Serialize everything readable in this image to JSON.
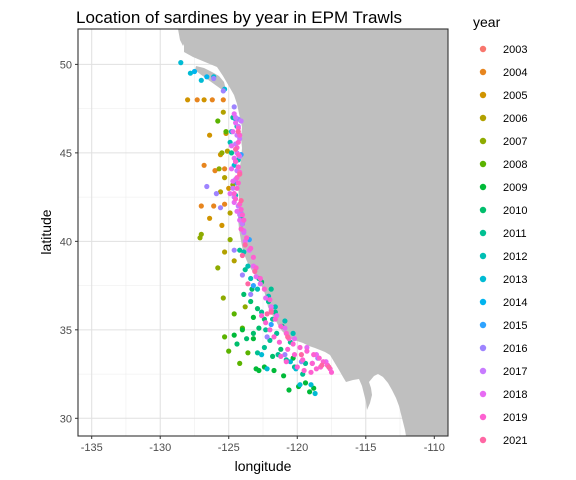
{
  "chart_data": {
    "type": "scatter",
    "title": "Location of sardines by year in EPM Trawls",
    "xlabel": "longitude",
    "ylabel": "latitude",
    "xlim": [
      -136,
      -109
    ],
    "ylim": [
      29,
      52
    ],
    "x_ticks": [
      -135,
      -130,
      -125,
      -120,
      -115,
      -110
    ],
    "y_ticks": [
      30,
      35,
      40,
      45,
      50
    ],
    "x_tick_labels": [
      "-135",
      "-130",
      "-125",
      "-120",
      "-115",
      "-110"
    ],
    "y_tick_labels": [
      "30",
      "35",
      "40",
      "45",
      "50"
    ],
    "grid": true,
    "legend": {
      "title": "year",
      "position": "right",
      "entries": [
        "2003",
        "2004",
        "2005",
        "2006",
        "2007",
        "2008",
        "2009",
        "2010",
        "2011",
        "2012",
        "2013",
        "2014",
        "2015",
        "2016",
        "2017",
        "2018",
        "2019",
        "2021"
      ]
    },
    "colors": {
      "2003": "#F8766D",
      "2004": "#E7851E",
      "2005": "#D09400",
      "2006": "#B2A100",
      "2007": "#8EAB00",
      "2008": "#5BB300",
      "2009": "#00BA38",
      "2010": "#00BE6C",
      "2011": "#00C092",
      "2012": "#00BFB4",
      "2013": "#00BBD4",
      "2014": "#00B4EF",
      "2015": "#2EA3FF",
      "2016": "#9E84FF",
      "2017": "#C87BFF",
      "2018": "#E76BF3",
      "2019": "#FD61D1",
      "2021": "#FF67A4"
    },
    "series": [
      {
        "name": "2004",
        "points": [
          [
            -127.3,
            48.0
          ],
          [
            -126.2,
            48.0
          ],
          [
            -125.4,
            48.0
          ],
          [
            -126.8,
            44.3
          ],
          [
            -126.0,
            44.0
          ],
          [
            -125.3,
            44.1
          ],
          [
            -127.0,
            42.0
          ],
          [
            -126.1,
            42.0
          ],
          [
            -125.3,
            42.1
          ]
        ]
      },
      {
        "name": "2005",
        "points": [
          [
            -128.0,
            48.0
          ],
          [
            -126.8,
            48.0
          ],
          [
            -126.4,
            46.0
          ],
          [
            -125.2,
            46.1
          ],
          [
            -125.6,
            44.9
          ],
          [
            -126.4,
            41.3
          ],
          [
            -125.5,
            40.9
          ],
          [
            -125.0,
            43.0
          ]
        ]
      },
      {
        "name": "2006",
        "points": [
          [
            -125.4,
            47.3
          ],
          [
            -125.1,
            45.1
          ],
          [
            -125.3,
            43.6
          ],
          [
            -125.6,
            42.8
          ],
          [
            -124.9,
            41.6
          ],
          [
            -125.3,
            39.4
          ],
          [
            -124.6,
            38.9
          ]
        ]
      },
      {
        "name": "2007",
        "points": [
          [
            -127.0,
            40.4
          ],
          [
            -127.1,
            40.2
          ],
          [
            -125.5,
            45.0
          ],
          [
            -125.7,
            44.1
          ],
          [
            -124.9,
            40.1
          ],
          [
            -125.8,
            38.5
          ],
          [
            -124.7,
            43.2
          ],
          [
            -123.8,
            36.3
          ],
          [
            -125.4,
            36.8
          ]
        ]
      },
      {
        "name": "2008",
        "points": [
          [
            -125.8,
            46.8
          ],
          [
            -125.2,
            46.2
          ],
          [
            -124.6,
            35.9
          ],
          [
            -125.0,
            33.8
          ],
          [
            -124.2,
            33.1
          ],
          [
            -123.6,
            33.7
          ],
          [
            -125.3,
            34.6
          ],
          [
            -124.0,
            35.1
          ]
        ]
      },
      {
        "name": "2009",
        "points": [
          [
            -120.6,
            31.6
          ],
          [
            -119.9,
            31.8
          ],
          [
            -119.4,
            32.0
          ],
          [
            -119.1,
            31.5
          ],
          [
            -118.8,
            31.7
          ],
          [
            -121.0,
            32.4
          ],
          [
            -121.7,
            32.7
          ],
          [
            -122.4,
            32.9
          ],
          [
            -122.8,
            32.7
          ],
          [
            -123.0,
            32.8
          ],
          [
            -120.3,
            33.4
          ],
          [
            -123.2,
            34.5
          ],
          [
            -124.0,
            35.0
          ],
          [
            -123.2,
            35.7
          ],
          [
            -124.6,
            34.7
          ]
        ]
      },
      {
        "name": "2010",
        "points": [
          [
            -124.4,
            34.2
          ],
          [
            -123.7,
            34.5
          ],
          [
            -123.2,
            34.8
          ],
          [
            -122.8,
            35.1
          ],
          [
            -122.4,
            35.6
          ],
          [
            -122.9,
            36.2
          ],
          [
            -123.4,
            36.6
          ],
          [
            -123.9,
            37.0
          ],
          [
            -122.6,
            37.7
          ],
          [
            -123.3,
            37.3
          ],
          [
            -121.8,
            33.5
          ],
          [
            -121.2,
            33.9
          ]
        ]
      },
      {
        "name": "2011",
        "points": [
          [
            -122.9,
            33.7
          ],
          [
            -122.4,
            34.0
          ],
          [
            -122.0,
            34.4
          ],
          [
            -121.5,
            34.8
          ],
          [
            -121.1,
            35.2
          ],
          [
            -122.3,
            35.0
          ],
          [
            -121.8,
            35.6
          ],
          [
            -121.6,
            36.0
          ],
          [
            -122.1,
            36.6
          ],
          [
            -122.6,
            36.0
          ],
          [
            -121.4,
            33.6
          ],
          [
            -120.8,
            33.3
          ],
          [
            -120.2,
            32.9
          ],
          [
            -119.6,
            32.5
          ],
          [
            -119.4,
            33.1
          ],
          [
            -120.5,
            34.3
          ],
          [
            -121.9,
            37.3
          ],
          [
            -122.8,
            37.9
          ],
          [
            -123.8,
            38.4
          ],
          [
            -124.2,
            39.5
          ],
          [
            -124.0,
            41.0
          ],
          [
            -124.8,
            45.0
          ],
          [
            -124.7,
            47.0
          ]
        ]
      },
      {
        "name": "2012",
        "points": [
          [
            -124.4,
            46.5
          ],
          [
            -124.9,
            45.6
          ],
          [
            -124.3,
            44.6
          ],
          [
            -124.5,
            42.6
          ],
          [
            -124.1,
            41.3
          ],
          [
            -123.9,
            39.4
          ],
          [
            -123.6,
            38.6
          ],
          [
            -123.4,
            37.9
          ],
          [
            -122.9,
            37.3
          ],
          [
            -122.1,
            36.9
          ],
          [
            -121.6,
            36.3
          ],
          [
            -120.9,
            35.5
          ],
          [
            -120.3,
            34.8
          ]
        ]
      },
      {
        "name": "2013",
        "points": [
          [
            -128.5,
            50.1
          ],
          [
            -127.8,
            49.5
          ],
          [
            -127.0,
            49.1
          ],
          [
            -126.1,
            49.3
          ],
          [
            -125.3,
            48.6
          ],
          [
            -124.5,
            46.9
          ],
          [
            -124.8,
            46.2
          ],
          [
            -124.6,
            44.3
          ],
          [
            -120.5,
            33.2
          ],
          [
            -120.1,
            32.8
          ],
          [
            -119.8,
            31.9
          ],
          [
            -119.0,
            31.9
          ],
          [
            -118.7,
            31.4
          ],
          [
            -122.2,
            32.8
          ],
          [
            -122.6,
            33.6
          ]
        ]
      },
      {
        "name": "2014",
        "points": [
          [
            -127.5,
            49.6
          ],
          [
            -126.6,
            49.3
          ]
        ]
      },
      {
        "name": "2015",
        "points": [
          [
            -124.1,
            44.9
          ],
          [
            -124.4,
            43.3
          ],
          [
            -123.5,
            40.1
          ],
          [
            -123.2,
            37.5
          ],
          [
            -121.9,
            35.3
          ]
        ]
      },
      {
        "name": "2016",
        "points": [
          [
            -126.6,
            43.1
          ],
          [
            -125.9,
            42.7
          ],
          [
            -125.6,
            41.9
          ],
          [
            -124.1,
            41.6
          ],
          [
            -124.6,
            39.5
          ],
          [
            -124.0,
            38.1
          ],
          [
            -123.4,
            37.0
          ],
          [
            -122.2,
            34.6
          ],
          [
            -120.9,
            33.6
          ],
          [
            -119.7,
            33.2
          ],
          [
            -118.9,
            33.1
          ],
          [
            -118.5,
            33.4
          ],
          [
            -117.8,
            33.0
          ],
          [
            -126.1,
            49.2
          ],
          [
            -125.4,
            48.5
          ],
          [
            -124.6,
            47.6
          ],
          [
            -124.3,
            46.9
          ]
        ]
      },
      {
        "name": "2017",
        "points": [
          [
            -124.5,
            47.0
          ],
          [
            -124.3,
            46.5
          ],
          [
            -124.4,
            46.0
          ],
          [
            -124.5,
            45.5
          ],
          [
            -124.4,
            45.0
          ],
          [
            -124.5,
            44.5
          ],
          [
            -124.4,
            44.0
          ],
          [
            -124.5,
            43.5
          ],
          [
            -124.7,
            43.0
          ],
          [
            -124.6,
            42.5
          ],
          [
            -124.3,
            42.0
          ],
          [
            -124.2,
            41.5
          ],
          [
            -124.0,
            41.0
          ],
          [
            -123.9,
            40.5
          ],
          [
            -124.1,
            46.8
          ],
          [
            -124.2,
            45.8
          ],
          [
            -124.2,
            44.8
          ]
        ]
      },
      {
        "name": "2018",
        "points": [
          [
            -124.6,
            47.2
          ],
          [
            -124.5,
            46.7
          ],
          [
            -124.7,
            46.2
          ],
          [
            -124.8,
            45.4
          ],
          [
            -124.6,
            44.7
          ],
          [
            -124.8,
            44.1
          ],
          [
            -124.7,
            43.4
          ],
          [
            -124.9,
            42.7
          ],
          [
            -124.6,
            42.2
          ],
          [
            -124.4,
            41.7
          ],
          [
            -124.2,
            41.2
          ],
          [
            -123.9,
            40.6
          ],
          [
            -123.8,
            40.0
          ],
          [
            -123.5,
            39.5
          ],
          [
            -123.2,
            38.6
          ],
          [
            -123.0,
            38.0
          ],
          [
            -122.7,
            37.6
          ],
          [
            -122.3,
            36.8
          ],
          [
            -121.9,
            36.3
          ],
          [
            -121.5,
            35.8
          ],
          [
            -120.9,
            35.1
          ],
          [
            -120.2,
            34.5
          ],
          [
            -119.3,
            34.0
          ],
          [
            -118.6,
            33.6
          ],
          [
            -117.9,
            33.2
          ]
        ]
      },
      {
        "name": "2019",
        "points": [
          [
            -124.5,
            44.5
          ],
          [
            -124.3,
            44.2
          ],
          [
            -124.2,
            43.9
          ],
          [
            -124.4,
            43.6
          ],
          [
            -124.3,
            43.3
          ],
          [
            -124.4,
            43.0
          ],
          [
            -124.6,
            42.7
          ],
          [
            -124.5,
            42.4
          ],
          [
            -124.2,
            42.1
          ],
          [
            -124.1,
            41.8
          ],
          [
            -124.0,
            41.5
          ],
          [
            -123.9,
            41.2
          ],
          [
            -124.3,
            44.9
          ],
          [
            -124.4,
            45.3
          ],
          [
            -124.3,
            45.6
          ],
          [
            -124.2,
            46.0
          ],
          [
            -124.3,
            46.4
          ],
          [
            -124.1,
            40.7
          ],
          [
            -123.7,
            40.2
          ],
          [
            -123.4,
            39.6
          ],
          [
            -123.2,
            39.1
          ],
          [
            -123.0,
            38.5
          ],
          [
            -122.7,
            37.9
          ],
          [
            -122.4,
            37.3
          ],
          [
            -122.0,
            36.7
          ],
          [
            -121.9,
            36.1
          ],
          [
            -121.6,
            35.6
          ],
          [
            -121.2,
            35.2
          ],
          [
            -120.8,
            34.8
          ],
          [
            -120.6,
            34.5
          ],
          [
            -120.3,
            34.2
          ],
          [
            -119.8,
            34.0
          ],
          [
            -119.3,
            33.8
          ],
          [
            -118.8,
            33.6
          ],
          [
            -118.4,
            33.4
          ],
          [
            -118.1,
            33.2
          ],
          [
            -117.8,
            33.0
          ],
          [
            -117.6,
            32.8
          ],
          [
            -117.5,
            32.6
          ],
          [
            -118.3,
            32.9
          ],
          [
            -118.9,
            33.1
          ],
          [
            -119.6,
            33.3
          ],
          [
            -120.2,
            33.6
          ],
          [
            -120.7,
            33.9
          ],
          [
            -121.3,
            34.3
          ],
          [
            -121.7,
            34.6
          ],
          [
            -122.0,
            35.0
          ],
          [
            -122.3,
            35.4
          ],
          [
            -122.6,
            35.8
          ],
          [
            -120.8,
            33.2
          ],
          [
            -121.2,
            33.5
          ],
          [
            -120.0,
            32.9
          ],
          [
            -119.5,
            32.7
          ],
          [
            -119.0,
            32.6
          ],
          [
            -118.6,
            32.8
          ]
        ]
      },
      {
        "name": "2021",
        "points": [
          [
            -124.3,
            46.2
          ],
          [
            -124.5,
            45.2
          ],
          [
            -124.2,
            43.8
          ],
          [
            -124.1,
            42.3
          ],
          [
            -123.8,
            39.8
          ],
          [
            -123.1,
            38.3
          ],
          [
            -121.9,
            36.0
          ],
          [
            -120.7,
            34.6
          ],
          [
            -119.7,
            33.6
          ],
          [
            -118.2,
            33.0
          ],
          [
            -117.7,
            32.9
          ],
          [
            -122.2,
            35.9
          ],
          [
            -123.6,
            37.6
          ],
          [
            -124.0,
            39.2
          ]
        ]
      }
    ]
  }
}
